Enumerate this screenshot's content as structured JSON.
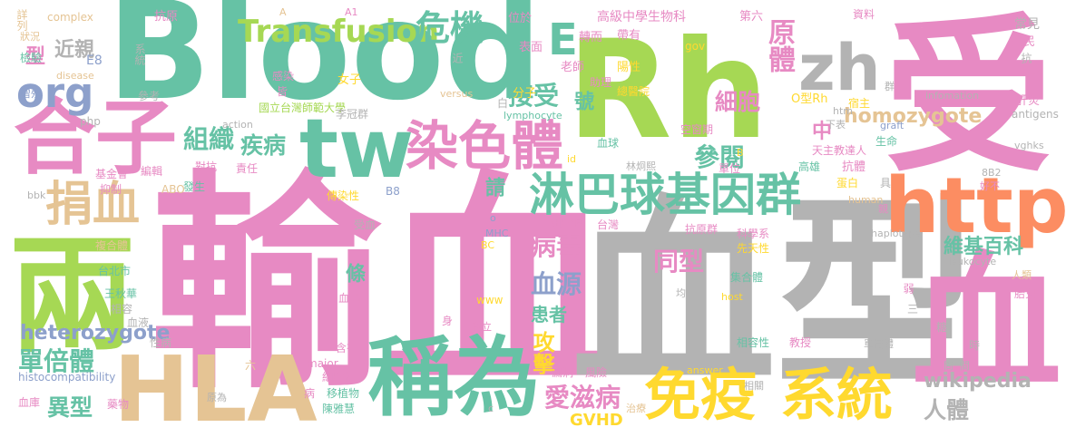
{
  "colors": {
    "pink": "#e78ac3",
    "green": "#66c2a5",
    "lime": "#a6d854",
    "yellow": "#ffd92f",
    "tan": "#e5c494",
    "gray": "#b3b3b3",
    "blue": "#8da0cb",
    "orange": "#fc8d62"
  },
  "words": {
    "blood": "Blood",
    "rh": "Rh",
    "shou": "受",
    "shuxue": "輸血",
    "xuexing": "血型",
    "xue2": "血",
    "liang": "兩",
    "hezi": "合子",
    "tw": "tw",
    "hla": "HLA",
    "chengwei": "稱為",
    "http": "http",
    "zh": "zh",
    "mianyi": "免疫",
    "xitong": "系統",
    "linba": "淋巴球基因群",
    "ranseti": "染色體",
    "transfusion": "Transfusion",
    "weiji": "危機",
    "juanxue": "捐血",
    "org": "org",
    "e": "E",
    "jieshou": "接受",
    "canyue": "參閱",
    "yuanti": "原體",
    "homozygote": "homozygote",
    "xibao": "細胞",
    "zuzhi": "組織",
    "jibing": "疾病",
    "tongxing": "同型",
    "bingdu": "病毒",
    "xueyuan": "血源",
    "danbeiti": "單倍體",
    "heterozygote": "heterozygote",
    "yixing": "異型",
    "aizibing": "愛滋病",
    "gongji": "攻擊",
    "renti": "人體",
    "wikipedia": "wikipedia",
    "gvhd": "GVHD",
    "jinqin": "近親",
    "xing": "型",
    "zhong": "中",
    "qing": "請",
    "tiao": "條",
    "huanzhe": "患者",
    "haoword": "號",
    "weiji_baike": "維基百科",
    "small": [
      "詳列",
      "complex",
      "抗原",
      "A",
      "A1",
      "位於",
      "高級中學生物科",
      "第六",
      "資料",
      "常見",
      "狀況",
      "檢驗",
      "E8",
      "系統",
      "表面",
      "轉而",
      "帶有",
      "gov",
      "榮民",
      "disease",
      "老師",
      "近",
      "抗",
      "陽性",
      "index",
      "助理",
      "總醫院",
      "群",
      "參考",
      "感染",
      "女子",
      "分子",
      "infomation",
      "肝炎",
      "增殖",
      "皆",
      "versus",
      "白",
      "O型Rh",
      "lymphocyte",
      "htm",
      "宿主",
      "php",
      "action",
      "國立台灣師範大學",
      "李冠群",
      "下表",
      "antigens",
      "graft",
      "空窗期",
      "天主教達人",
      "血球",
      "生命",
      "vghks",
      "基金會",
      "編輯",
      "抑制",
      "對抗",
      "id",
      "林炯熙",
      "單位",
      "高雄",
      "抗體",
      "發生",
      "責任",
      "B",
      "ABO",
      "8B2",
      "好不",
      "蛋白",
      "具",
      "human",
      "bbk",
      "B8",
      "傳染性",
      "親",
      "受血",
      "細胞膜",
      "台灣",
      "MHC",
      "haplotype",
      "BC",
      "抗原群",
      "科學系",
      "先天性",
      "複合體",
      "台北市",
      "leukocyte",
      "集合體",
      "人類",
      "王秋華",
      "均",
      "host",
      "血品",
      "弱",
      "相容",
      "胎兒",
      "血液",
      "二",
      "身",
      "三",
      "www",
      "私立",
      "性病",
      "糖",
      "含有",
      "相容性",
      "教授",
      "major",
      "單倍體",
      "時",
      "細胞核",
      "六",
      "answer",
      "漏洞",
      "風險",
      "histocompatibility",
      "病",
      "移植物",
      "原為",
      "相關",
      "血庫",
      "藥物",
      "陳雅慧",
      "治療",
      "問",
      "間",
      "c",
      "o"
    ]
  }
}
